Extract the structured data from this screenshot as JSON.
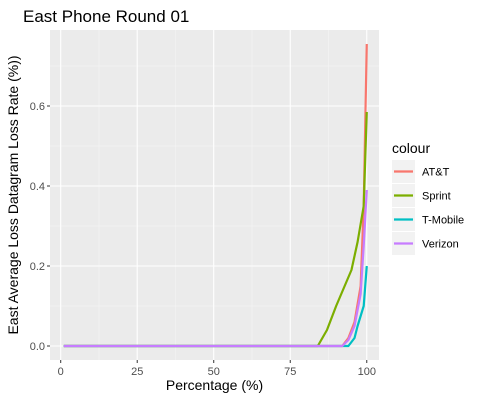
{
  "chart_data": {
    "type": "line",
    "title": "East Phone Round 01",
    "xlabel": "Percentage (%)",
    "ylabel": "East Average Loss Datagram Loss Rate (%))",
    "xlim": [
      -3.5,
      104
    ],
    "ylim": [
      -0.035,
      0.79
    ],
    "x_ticks": [
      0,
      25,
      50,
      75,
      100
    ],
    "x_tick_labels": [
      "0",
      "25",
      "50",
      "75",
      "100"
    ],
    "y_ticks": [
      0,
      0.2,
      0.4,
      0.6
    ],
    "y_tick_labels": [
      "0.0",
      "0.2",
      "0.4",
      "0.6"
    ],
    "grid": true,
    "legend": {
      "title": "colour",
      "position": "right"
    },
    "series": [
      {
        "name": "AT&T",
        "color": "#F8766D",
        "points": [
          [
            1,
            0
          ],
          [
            92,
            0
          ],
          [
            94,
            0.02
          ],
          [
            96,
            0.06
          ],
          [
            98,
            0.15
          ],
          [
            99,
            0.35
          ],
          [
            100,
            0.755
          ]
        ]
      },
      {
        "name": "Sprint",
        "color": "#7CAE00",
        "points": [
          [
            1,
            0
          ],
          [
            84,
            0
          ],
          [
            87,
            0.04
          ],
          [
            90,
            0.1
          ],
          [
            95,
            0.19
          ],
          [
            97,
            0.26
          ],
          [
            99,
            0.35
          ],
          [
            100,
            0.585
          ]
        ]
      },
      {
        "name": "T-Mobile",
        "color": "#00BFC4",
        "points": [
          [
            1,
            0
          ],
          [
            94,
            0
          ],
          [
            96,
            0.02
          ],
          [
            97,
            0.05
          ],
          [
            99,
            0.1
          ],
          [
            100,
            0.2
          ]
        ]
      },
      {
        "name": "Verizon",
        "color": "#C77CFF",
        "points": [
          [
            1,
            0
          ],
          [
            92,
            0
          ],
          [
            94,
            0.015
          ],
          [
            96,
            0.05
          ],
          [
            98,
            0.13
          ],
          [
            99,
            0.25
          ],
          [
            100,
            0.39
          ]
        ]
      }
    ]
  }
}
